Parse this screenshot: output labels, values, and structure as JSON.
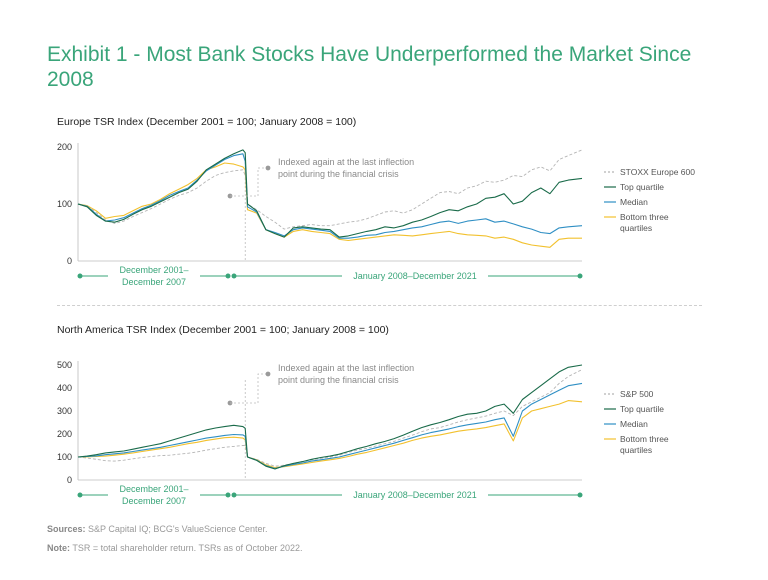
{
  "title": "Exhibit 1 - Most Bank Stocks Have Underperformed the Market Since 2008",
  "colors": {
    "index": "#b5b5b5",
    "top": "#1a6b4a",
    "median": "#2f8fc4",
    "bottom": "#f2c12e",
    "accent": "#3aa57a",
    "annot": "#9a9a9a"
  },
  "footer": {
    "sources_label": "Sources:",
    "sources_text": "S&P Capital IQ; BCG's ValueScience Center.",
    "note_label": "Note:",
    "note_text": "TSR = total shareholder return. TSRs as of October 2022."
  },
  "chart_data": [
    {
      "type": "line",
      "title": "Europe TSR Index (December 2001 = 100; January 2008 = 100)",
      "ylim": [
        0,
        200
      ],
      "yticks": [
        0,
        100,
        200
      ],
      "x": [
        0,
        4,
        8,
        12,
        16,
        20,
        24,
        28,
        32,
        36,
        40,
        44,
        48,
        52,
        56,
        60,
        64,
        68,
        72,
        73,
        74,
        78,
        82,
        86,
        90,
        94,
        98,
        102,
        106,
        110,
        114,
        118,
        122,
        126,
        130,
        134,
        138,
        142,
        146,
        150,
        154,
        158,
        162,
        166,
        170,
        174,
        178,
        182,
        186,
        190,
        194,
        198,
        202,
        206,
        210,
        214,
        220
      ],
      "breakpoint_x": 73,
      "annotation": "Indexed again at the last inflection point during the financial crisis",
      "period_labels": {
        "first": "December 2001– December 2007",
        "second": "January 2008–December 2021"
      },
      "series": [
        {
          "name": "STOXX Europe 600",
          "style": "dashed",
          "values": [
            100,
            97,
            85,
            72,
            66,
            70,
            78,
            85,
            92,
            100,
            108,
            115,
            120,
            128,
            140,
            150,
            155,
            158,
            160,
            150,
            100,
            90,
            78,
            68,
            56,
            60,
            62,
            64,
            62,
            62,
            65,
            68,
            70,
            74,
            80,
            86,
            88,
            84,
            90,
            100,
            110,
            120,
            122,
            118,
            128,
            132,
            140,
            138,
            142,
            150,
            148,
            160,
            165,
            158,
            178,
            185,
            195
          ]
        },
        {
          "name": "Top quartile",
          "style": "solid",
          "values": [
            100,
            95,
            80,
            70,
            68,
            73,
            82,
            90,
            96,
            104,
            112,
            120,
            126,
            140,
            160,
            170,
            180,
            188,
            195,
            190,
            100,
            88,
            55,
            48,
            42,
            58,
            60,
            58,
            56,
            55,
            42,
            44,
            48,
            52,
            55,
            60,
            58,
            62,
            68,
            72,
            78,
            85,
            90,
            88,
            95,
            100,
            110,
            112,
            118,
            100,
            105,
            120,
            128,
            118,
            138,
            142,
            145
          ]
        },
        {
          "name": "Median",
          "style": "solid",
          "values": [
            100,
            96,
            82,
            70,
            72,
            76,
            84,
            92,
            98,
            106,
            115,
            122,
            128,
            142,
            158,
            168,
            178,
            185,
            188,
            175,
            95,
            86,
            55,
            50,
            44,
            55,
            58,
            56,
            54,
            52,
            40,
            40,
            42,
            45,
            46,
            50,
            52,
            55,
            58,
            60,
            64,
            68,
            70,
            66,
            70,
            72,
            74,
            68,
            70,
            65,
            60,
            56,
            50,
            48,
            58,
            60,
            62
          ]
        },
        {
          "name": "Bottom three quartiles",
          "style": "solid",
          "values": [
            100,
            97,
            88,
            75,
            78,
            80,
            88,
            96,
            100,
            108,
            118,
            126,
            134,
            145,
            160,
            165,
            172,
            170,
            165,
            160,
            90,
            84,
            55,
            48,
            42,
            52,
            55,
            52,
            50,
            48,
            38,
            36,
            38,
            40,
            42,
            44,
            46,
            45,
            44,
            46,
            48,
            50,
            52,
            48,
            46,
            45,
            44,
            40,
            42,
            38,
            32,
            28,
            26,
            24,
            38,
            40,
            40
          ]
        }
      ]
    },
    {
      "type": "line",
      "title": "North America TSR Index (December 2001 = 100; January 2008 = 100)",
      "ylim": [
        0,
        500
      ],
      "yticks": [
        0,
        100,
        200,
        300,
        400,
        500
      ],
      "x": [
        0,
        4,
        8,
        12,
        16,
        20,
        24,
        28,
        32,
        36,
        40,
        44,
        48,
        52,
        56,
        60,
        64,
        68,
        72,
        73,
        74,
        78,
        82,
        86,
        90,
        94,
        98,
        102,
        106,
        110,
        114,
        118,
        122,
        126,
        130,
        134,
        138,
        142,
        146,
        150,
        154,
        158,
        162,
        166,
        170,
        174,
        178,
        182,
        186,
        190,
        194,
        198,
        202,
        206,
        210,
        214,
        220
      ],
      "breakpoint_x": 73,
      "annotation": "Indexed again at the last inflection point during the financial crisis",
      "period_labels": {
        "first": "December 2001– December 2007",
        "second": "January 2008–December 2021"
      },
      "series": [
        {
          "name": "S&P 500",
          "style": "dashed",
          "values": [
            100,
            95,
            90,
            84,
            82,
            86,
            92,
            98,
            102,
            106,
            108,
            112,
            116,
            122,
            130,
            136,
            142,
            146,
            150,
            150,
            100,
            90,
            72,
            60,
            65,
            72,
            80,
            88,
            94,
            100,
            108,
            120,
            130,
            138,
            148,
            158,
            168,
            182,
            195,
            210,
            222,
            228,
            240,
            252,
            262,
            270,
            278,
            290,
            300,
            280,
            320,
            340,
            360,
            380,
            420,
            450,
            480
          ]
        },
        {
          "name": "Top quartile",
          "style": "solid",
          "values": [
            100,
            104,
            110,
            118,
            122,
            126,
            134,
            142,
            150,
            158,
            170,
            182,
            194,
            206,
            218,
            226,
            232,
            238,
            232,
            225,
            100,
            85,
            60,
            48,
            62,
            72,
            80,
            90,
            98,
            104,
            112,
            124,
            136,
            146,
            158,
            168,
            180,
            195,
            212,
            228,
            240,
            250,
            262,
            276,
            286,
            290,
            300,
            320,
            330,
            290,
            350,
            380,
            410,
            440,
            470,
            490,
            500
          ]
        },
        {
          "name": "Median",
          "style": "solid",
          "values": [
            100,
            102,
            105,
            110,
            114,
            118,
            124,
            130,
            136,
            142,
            150,
            158,
            166,
            174,
            182,
            188,
            194,
            198,
            196,
            190,
            100,
            86,
            62,
            50,
            60,
            68,
            74,
            82,
            88,
            94,
            100,
            110,
            120,
            130,
            140,
            150,
            160,
            172,
            184,
            196,
            206,
            214,
            222,
            232,
            240,
            246,
            252,
            262,
            270,
            190,
            300,
            330,
            350,
            370,
            390,
            410,
            420
          ]
        },
        {
          "name": "Bottom three quartiles",
          "style": "solid",
          "values": [
            100,
            101,
            102,
            104,
            108,
            112,
            118,
            124,
            130,
            136,
            142,
            150,
            158,
            164,
            172,
            178,
            184,
            186,
            182,
            175,
            100,
            88,
            66,
            54,
            58,
            64,
            70,
            76,
            82,
            88,
            94,
            102,
            112,
            120,
            130,
            140,
            150,
            160,
            172,
            182,
            190,
            196,
            204,
            212,
            218,
            222,
            228,
            236,
            244,
            170,
            270,
            300,
            310,
            320,
            330,
            345,
            340
          ]
        }
      ]
    }
  ]
}
